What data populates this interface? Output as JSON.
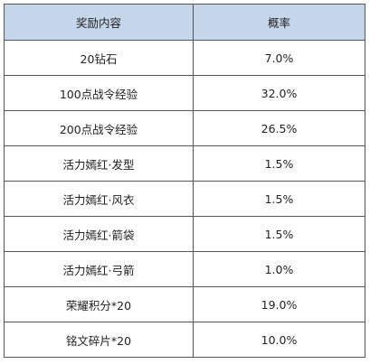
{
  "table": {
    "headers": [
      "奖励内容",
      "概率"
    ],
    "rows": [
      [
        "20钻石",
        "7.0%"
      ],
      [
        "100点战令经验",
        "32.0%"
      ],
      [
        "200点战令经验",
        "26.5%"
      ],
      [
        "活力嫣红·发型",
        "1.5%"
      ],
      [
        "活力嫣红·风衣",
        "1.5%"
      ],
      [
        "活力嫣红·箭袋",
        "1.5%"
      ],
      [
        "活力嫣红·弓箭",
        "1.0%"
      ],
      [
        "荣耀积分*20",
        "19.0%"
      ],
      [
        "铭文碎片*20",
        "10.0%"
      ]
    ]
  },
  "colors": {
    "header_bg": "#c5d5ea",
    "border": "#555555"
  }
}
